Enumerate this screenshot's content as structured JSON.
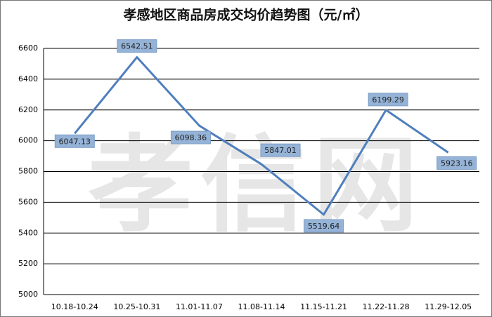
{
  "chart_data": {
    "type": "line",
    "title": "孝感地区商品房成交均价趋势图（元/㎡）",
    "watermark": "孝信网",
    "categories": [
      "10.18-10.24",
      "10.25-10.31",
      "11.01-11.07",
      "11.08-11.14",
      "11.15-11.21",
      "11.22-11.28",
      "11.29-12.05"
    ],
    "series": [
      {
        "name": "均价",
        "color": "#4f7fbd",
        "values": [
          6047.13,
          6542.51,
          6098.36,
          5847.01,
          5519.64,
          6199.29,
          5923.16
        ],
        "value_labels": [
          "6047.13",
          "6542.51",
          "6098.36",
          "5847.01",
          "5519.64",
          "6199.29",
          "5923.16"
        ]
      }
    ],
    "ylim": [
      5000,
      6600
    ],
    "yticks": [
      5000,
      5200,
      5400,
      5600,
      5800,
      6000,
      6200,
      6400,
      6600
    ],
    "grid": true
  }
}
